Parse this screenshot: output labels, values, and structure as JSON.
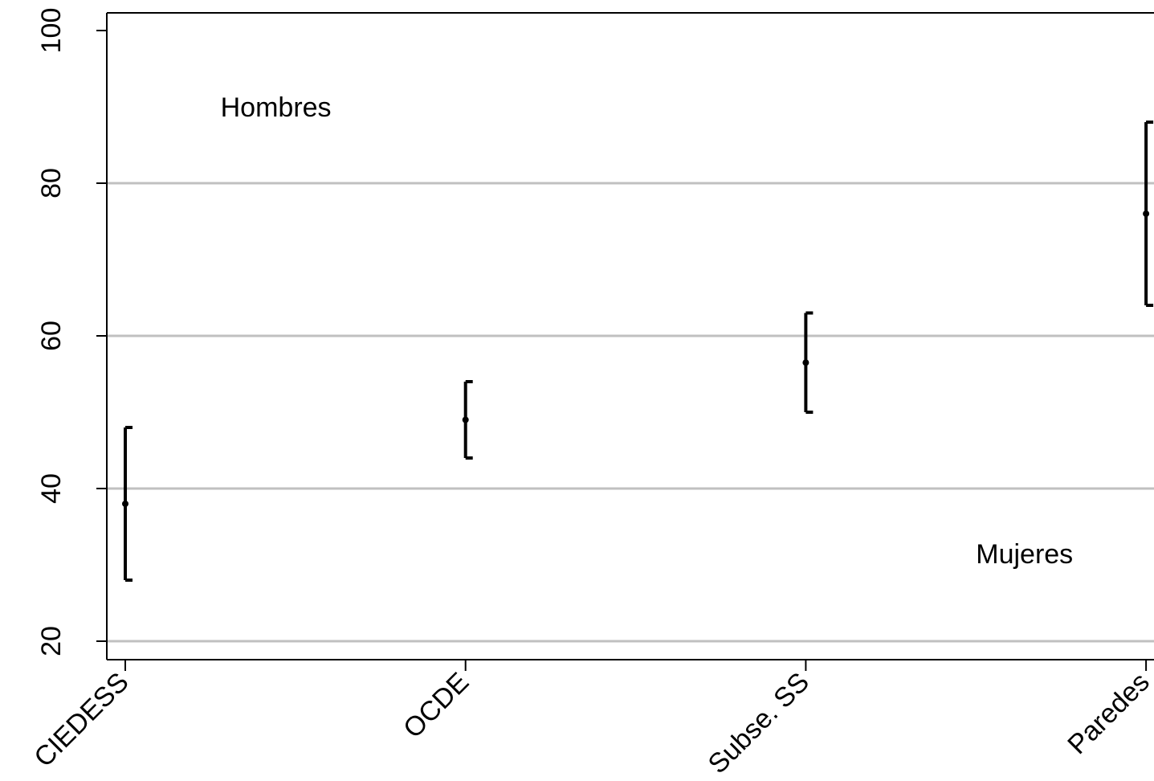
{
  "chart_data": {
    "type": "errorbar",
    "title": "",
    "xlabel": "",
    "ylabel": "",
    "categories": [
      "CIEDESS",
      "OCDE",
      "Subse. SS",
      "Paredes"
    ],
    "points": [
      {
        "category": "CIEDESS",
        "estimate": 38,
        "low": 28,
        "high": 48
      },
      {
        "category": "OCDE",
        "estimate": 49,
        "low": 44,
        "high": 54
      },
      {
        "category": "Subse. SS",
        "estimate": 56.5,
        "low": 50,
        "high": 63
      },
      {
        "category": "Paredes",
        "estimate": 76,
        "low": 64,
        "high": 88
      }
    ],
    "ylim": [
      18,
      102
    ],
    "yticks": [
      20,
      40,
      60,
      80,
      100
    ],
    "gridlines_y": [
      20,
      40,
      60,
      80
    ],
    "grid": true,
    "annotations": [
      {
        "text": "Hombres",
        "x_category_offset": 0.28,
        "y": 90
      },
      {
        "text": "Mujeres",
        "x_category_offset": 2.5,
        "y": 31.5
      }
    ],
    "colors": {
      "marks": "#000000",
      "grid": "#c0c0c0",
      "background": "#ffffff"
    }
  }
}
